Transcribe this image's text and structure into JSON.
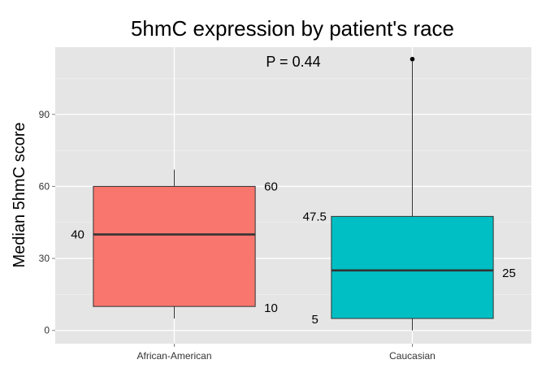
{
  "chart_data": {
    "type": "box",
    "title": "5hmC expression by patient's race",
    "xlabel": "",
    "ylabel": "Median 5hmC score",
    "ylim": [
      -5.5,
      118
    ],
    "yticks": [
      0,
      30,
      60,
      90
    ],
    "grid": true,
    "annotation": "P = 0.44",
    "categories": [
      "African-American",
      "Caucasian"
    ],
    "boxes": [
      {
        "category": "African-American",
        "color": "#F8766D",
        "q1": 10,
        "median": 40,
        "q3": 60,
        "whisker_low": 5,
        "whisker_high": 67,
        "outliers": [],
        "labels": {
          "q1": "10",
          "median": "40",
          "q3": "60"
        }
      },
      {
        "category": "Caucasian",
        "color": "#00BFC4",
        "q1": 5,
        "median": 25,
        "q3": 47.5,
        "whisker_low": 0,
        "whisker_high": 112,
        "outliers": [
          113
        ],
        "labels": {
          "q1": "5",
          "median": "25",
          "q3": "47.5"
        }
      }
    ]
  }
}
